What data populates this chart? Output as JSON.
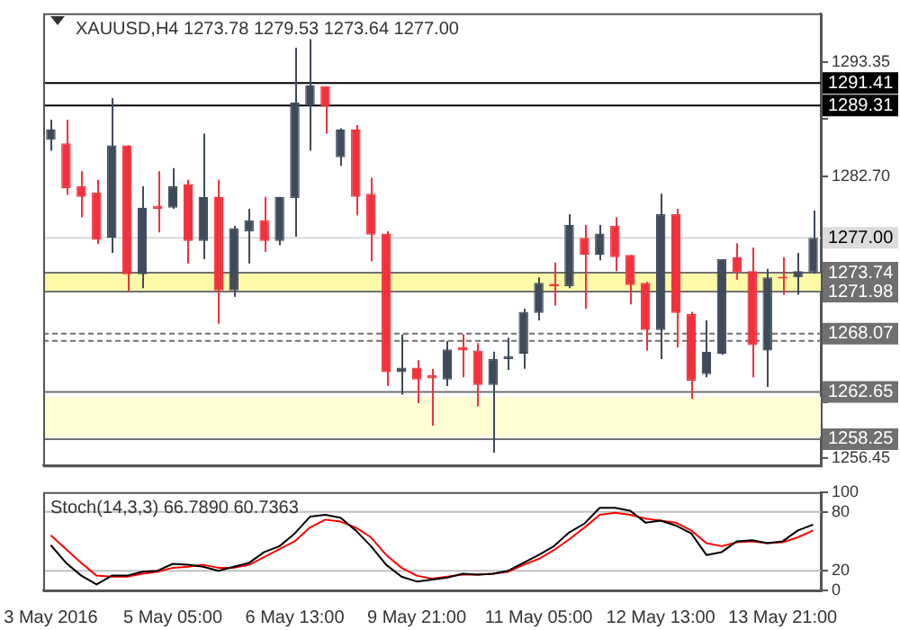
{
  "chart_data": [
    {
      "type": "candlestick",
      "title": "XAUUSD,H4 1273.78 1279.53 1273.64 1277.00",
      "categories": [
        null,
        null,
        null,
        null,
        null,
        null,
        null,
        null,
        null,
        null,
        null,
        null,
        null,
        null,
        null,
        null,
        null,
        null,
        null,
        null,
        null,
        null,
        null,
        null,
        null,
        null,
        null,
        null,
        null,
        null,
        null,
        null,
        null,
        null,
        null,
        null,
        null,
        null,
        null,
        null,
        null,
        null,
        null,
        null,
        null,
        null,
        null,
        null,
        null,
        null,
        null
      ],
      "ohlc": [
        [
          1286.1,
          1288.0,
          1285.1,
          1287.1
        ],
        [
          1285.8,
          1288.0,
          1281.0,
          1281.6
        ],
        [
          1281.8,
          1283.2,
          1278.9,
          1280.8
        ],
        [
          1281.2,
          1282.4,
          1276.4,
          1276.8
        ],
        [
          1277.0,
          1290.0,
          1275.6,
          1285.6
        ],
        [
          1285.6,
          1285.6,
          1272.0,
          1273.6
        ],
        [
          1273.6,
          1281.8,
          1272.3,
          1279.8
        ],
        [
          1280.0,
          1283.2,
          1277.5,
          1279.7
        ],
        [
          1279.8,
          1283.5,
          1279.7,
          1281.8
        ],
        [
          1282.0,
          1282.4,
          1274.6,
          1276.7
        ],
        [
          1276.7,
          1286.7,
          1275.0,
          1280.8
        ],
        [
          1280.8,
          1282.4,
          1269.0,
          1272.1
        ],
        [
          1272.1,
          1278.1,
          1271.5,
          1277.9
        ],
        [
          1277.6,
          1279.7,
          1274.6,
          1278.6
        ],
        [
          1278.6,
          1280.8,
          1275.7,
          1276.7
        ],
        [
          1276.7,
          1280.8,
          1276.3,
          1280.8
        ],
        [
          1280.7,
          1294.7,
          1277.1,
          1289.6
        ],
        [
          1289.3,
          1295.5,
          1285.1,
          1291.2
        ],
        [
          1291.1,
          1291.1,
          1286.7,
          1289.2
        ],
        [
          1284.5,
          1287.2,
          1283.7,
          1287.1
        ],
        [
          1287.1,
          1287.5,
          1279.1,
          1280.8
        ],
        [
          1281.1,
          1282.6,
          1274.8,
          1277.3
        ],
        [
          1277.4,
          1277.6,
          1263.2,
          1264.5
        ],
        [
          1264.5,
          1268.0,
          1262.4,
          1264.9
        ],
        [
          1264.9,
          1265.6,
          1261.6,
          1263.8
        ],
        [
          1264.2,
          1264.8,
          1259.5,
          1263.9
        ],
        [
          1263.8,
          1267.4,
          1263.2,
          1266.6
        ],
        [
          1266.8,
          1268.0,
          1264.0,
          1266.5
        ],
        [
          1266.5,
          1267.2,
          1261.3,
          1263.3
        ],
        [
          1263.3,
          1266.4,
          1257.0,
          1265.7
        ],
        [
          1265.7,
          1267.7,
          1264.7,
          1266.0
        ],
        [
          1266.2,
          1270.4,
          1264.8,
          1270.1
        ],
        [
          1270.0,
          1273.3,
          1269.3,
          1272.8
        ],
        [
          1272.7,
          1274.7,
          1270.7,
          1272.5
        ],
        [
          1272.5,
          1279.2,
          1272.3,
          1278.2
        ],
        [
          1277.0,
          1278.2,
          1270.4,
          1275.4
        ],
        [
          1275.4,
          1278.2,
          1274.9,
          1277.4
        ],
        [
          1278.1,
          1278.9,
          1273.9,
          1275.2
        ],
        [
          1275.4,
          1275.4,
          1270.8,
          1272.6
        ],
        [
          1272.8,
          1272.9,
          1266.5,
          1268.4
        ],
        [
          1268.4,
          1281.1,
          1265.7,
          1279.2
        ],
        [
          1279.2,
          1279.7,
          1266.8,
          1270.0
        ],
        [
          1269.9,
          1270.1,
          1262.0,
          1263.7
        ],
        [
          1264.3,
          1269.3,
          1264.0,
          1266.4
        ],
        [
          1266.2,
          1275.0,
          1266.1,
          1275.0
        ],
        [
          1275.2,
          1276.5,
          1273.1,
          1273.8
        ],
        [
          1273.9,
          1276.1,
          1264.0,
          1267.0
        ],
        [
          1266.5,
          1274.1,
          1263.1,
          1273.3
        ],
        [
          1273.3,
          1275.2,
          1271.7,
          1273.2
        ],
        [
          1273.3,
          1275.6,
          1271.7,
          1273.9
        ],
        [
          1273.78,
          1279.53,
          1273.64,
          1277.0
        ]
      ],
      "colors": [
        "#3f4b5b",
        "#f2313c",
        "#f2313c",
        "#f2313c",
        "#3f4b5b",
        "#f2313c",
        "#3f4b5b",
        "#f2313c",
        "#3f4b5b",
        "#f2313c",
        "#3f4b5b",
        "#f2313c",
        "#3f4b5b",
        "#3f4b5b",
        "#f2313c",
        "#3f4b5b",
        "#3f4b5b",
        "#3f4b5b",
        "#f2313c",
        "#3f4b5b",
        "#f2313c",
        "#f2313c",
        "#f2313c",
        "#3f4b5b",
        "#f2313c",
        "#f2313c",
        "#3f4b5b",
        "#f2313c",
        "#f2313c",
        "#3f4b5b",
        "#3f4b5b",
        "#3f4b5b",
        "#3f4b5b",
        "#f2313c",
        "#3f4b5b",
        "#f2313c",
        "#3f4b5b",
        "#f2313c",
        "#f2313c",
        "#f2313c",
        "#3f4b5b",
        "#f2313c",
        "#f2313c",
        "#3f4b5b",
        "#3f4b5b",
        "#f2313c",
        "#f2313c",
        "#3f4b5b",
        "#f2313c",
        "#3f4b5b",
        "#3f4b5b"
      ],
      "ylim": [
        1255.8,
        1297.9
      ],
      "yticks": [
        1293.35,
        {
          "value": 1288.1,
          "label": null
        },
        {
          "value": 1282.7,
          "label": "1282.70"
        },
        {
          "value": 1261.7,
          "label": null
        },
        1256.45
      ],
      "bands": [
        {
          "axis": "y",
          "from": 1271.98,
          "to": 1273.74,
          "color": "#fffaa8"
        },
        {
          "axis": "y",
          "from": 1258.5,
          "to": 1262.2,
          "color": "#fffdd4"
        }
      ],
      "ref_lines": [
        {
          "axis": "y",
          "value": 1291.41,
          "label": "1291.41",
          "color": "#000000",
          "line_style": "solid"
        },
        {
          "axis": "y",
          "value": 1289.31,
          "label": "1289.31",
          "color": "#000000",
          "line_style": "solid"
        },
        {
          "axis": "y",
          "value": 1277.0,
          "label": "1277.00",
          "color": "#dcdcdc",
          "line_style": "solid"
        },
        {
          "axis": "y",
          "value": 1273.74,
          "label": "1273.74",
          "color": "#707070",
          "line_style": "solid"
        },
        {
          "axis": "y",
          "value": 1271.98,
          "label": "1271.98",
          "color": "#707070",
          "line_style": "solid"
        },
        {
          "axis": "y",
          "value": 1268.07,
          "label": "1268.07",
          "color": "#707070",
          "line_style": "dashed"
        },
        {
          "axis": "y",
          "value": 1267.4,
          "color": "#707070",
          "line_style": "dashed"
        },
        {
          "axis": "y",
          "value": 1262.65,
          "label": "1262.65",
          "color": "#707070",
          "line_style": "solid"
        },
        {
          "axis": "y",
          "value": 1258.25,
          "label": "1258.25",
          "color": "#707070",
          "line_style": "solid"
        }
      ],
      "tick_labels": "y",
      "legend": false
    },
    {
      "type": "line",
      "title": "Stoch(14,3,3) 66.7890 60.7363",
      "categories": [
        "3 May 2016",
        null,
        null,
        null,
        null,
        null,
        null,
        null,
        "5 May 05:00",
        null,
        null,
        null,
        null,
        null,
        null,
        null,
        "6 May 13:00",
        null,
        null,
        null,
        null,
        null,
        null,
        null,
        "9 May 21:00",
        null,
        null,
        null,
        null,
        null,
        null,
        null,
        "11 May 05:00",
        null,
        null,
        null,
        null,
        null,
        null,
        null,
        "12 May 13:00",
        null,
        null,
        null,
        null,
        null,
        null,
        null,
        "13 May 21:00",
        null,
        null
      ],
      "series": [
        {
          "color": "#000000",
          "values": [
            46,
            28,
            15,
            6,
            15,
            15,
            19,
            20,
            27,
            26,
            24,
            20,
            24,
            28,
            39,
            45,
            58,
            75,
            77,
            74,
            61,
            45,
            26,
            14,
            9,
            11,
            13,
            17,
            16,
            17,
            20,
            28,
            36,
            45,
            59,
            68,
            84,
            84,
            81,
            69,
            71,
            66,
            58,
            36,
            39,
            50,
            51,
            48,
            50,
            61,
            67
          ]
        },
        {
          "color": "#ff0000",
          "values": [
            56,
            42,
            28,
            15,
            14,
            14,
            17,
            19,
            23,
            24,
            26,
            23,
            23,
            26,
            34,
            42,
            50,
            64,
            72,
            70,
            64,
            54,
            36,
            23,
            15,
            12,
            14,
            16,
            16,
            17,
            19,
            26,
            32,
            41,
            52,
            64,
            77,
            79,
            77,
            73,
            71,
            69,
            61,
            48,
            45,
            49,
            50,
            48,
            49,
            54,
            61
          ]
        }
      ],
      "ylim": [
        0,
        100
      ],
      "yticks": [
        0,
        20,
        80,
        100
      ],
      "ref_lines": [
        {
          "axis": "y",
          "value": 20,
          "color": "#c0c0c0",
          "line_style": "solid"
        },
        {
          "axis": "y",
          "value": 80,
          "color": "#c0c0c0",
          "line_style": "solid"
        }
      ],
      "marker": "none",
      "legend": false
    }
  ]
}
